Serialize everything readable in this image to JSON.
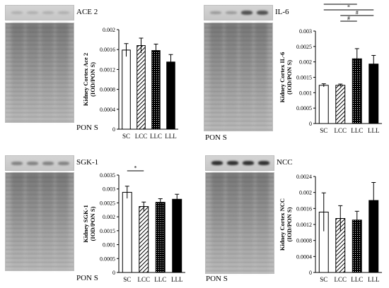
{
  "panels": [
    {
      "gene": "ACE 2",
      "stain_label": "PON S",
      "band_style": "faint",
      "chart_data": {
        "type": "bar",
        "categories": [
          "SC",
          "LCC",
          "LLC",
          "LLL"
        ],
        "values": [
          0.00159,
          0.00168,
          0.00158,
          0.00135
        ],
        "errors": [
          0.00013,
          0.00015,
          0.00013,
          0.00015
        ],
        "fills": [
          "white",
          "hatch",
          "dots",
          "black"
        ],
        "ylabel": "Kidney Cortex Ace 2",
        "ylabel2": "(IOD/PON S)",
        "ylim": [
          0,
          0.002
        ],
        "yticks": [
          "0",
          "0.0004",
          "0.0008",
          "0.0012",
          "0.0016",
          "0.002"
        ],
        "ytick_values": [
          0,
          0.0004,
          0.0008,
          0.0012,
          0.0016,
          0.002
        ],
        "significance": []
      }
    },
    {
      "gene": "IL-6",
      "stain_label": "PON S",
      "band_style": "strong-right",
      "chart_data": {
        "type": "bar",
        "categories": [
          "SC",
          "LCC",
          "LLC",
          "LLL"
        ],
        "values": [
          0.00124,
          0.00124,
          0.0021,
          0.00193
        ],
        "errors": [
          5e-05,
          4e-05,
          0.00033,
          0.00028
        ],
        "fills": [
          "white",
          "hatch",
          "dots",
          "black"
        ],
        "ylabel": "Kidney Cortex IL-6",
        "ylabel2": "(IOD/PON S)",
        "ylim": [
          0,
          0.003
        ],
        "yticks": [
          "0",
          "0.0005",
          "0.001",
          "0.0015",
          "0.002",
          "0.0025",
          "0.003"
        ],
        "ytick_values": [
          0,
          0.0005,
          0.001,
          0.0015,
          0.002,
          0.0025,
          0.003
        ],
        "significance": [
          {
            "from": 0,
            "to": 2,
            "label": "*",
            "level": 5
          },
          {
            "from": 0,
            "to": 3,
            "label": "*",
            "level": 4
          },
          {
            "from": 1,
            "to": 3,
            "label": "#",
            "level": 3
          },
          {
            "from": 1,
            "to": 2,
            "label": "#",
            "level": 2
          }
        ]
      }
    },
    {
      "gene": "SGK-1",
      "stain_label": "PON S",
      "band_style": "medium",
      "chart_data": {
        "type": "bar",
        "categories": [
          "SC",
          "LCC",
          "LLC",
          "LLL"
        ],
        "values": [
          0.00288,
          0.00237,
          0.00252,
          0.00263
        ],
        "errors": [
          0.00022,
          0.00016,
          0.00013,
          0.00018
        ],
        "fills": [
          "white",
          "hatch",
          "dots",
          "black"
        ],
        "ylabel": "Kidney SGK-1",
        "ylabel2": "(IOD/PON S)",
        "ylim": [
          0,
          0.0035
        ],
        "yticks": [
          "0",
          "0.0005",
          "0.001",
          "0.0015",
          "0.002",
          "0.0025",
          "0.003",
          "0.0035"
        ],
        "ytick_values": [
          0,
          0.0005,
          0.001,
          0.0015,
          0.002,
          0.0025,
          0.003,
          0.0035
        ],
        "significance": [
          {
            "from": 0,
            "to": 1,
            "label": "*",
            "level": 1
          }
        ]
      }
    },
    {
      "gene": "NCC",
      "stain_label": "PON S",
      "band_style": "strong",
      "chart_data": {
        "type": "bar",
        "categories": [
          "SC",
          "LCC",
          "LLC",
          "LLL"
        ],
        "values": [
          0.00151,
          0.00135,
          0.00131,
          0.0018
        ],
        "errors": [
          0.00048,
          0.00032,
          0.00022,
          0.00045
        ],
        "fills": [
          "white",
          "hatch",
          "dots",
          "black"
        ],
        "ylabel": "Kidney Cortex NCC",
        "ylabel2": "(IOD/PON S)",
        "ylim": [
          0,
          0.0024
        ],
        "yticks": [
          "0",
          "0.0004",
          "0.0008",
          "0.0012",
          "0.0016",
          "0.002",
          "0.0024"
        ],
        "ytick_values": [
          0,
          0.0004,
          0.0008,
          0.0012,
          0.0016,
          0.002,
          0.0024
        ],
        "significance": []
      }
    }
  ]
}
